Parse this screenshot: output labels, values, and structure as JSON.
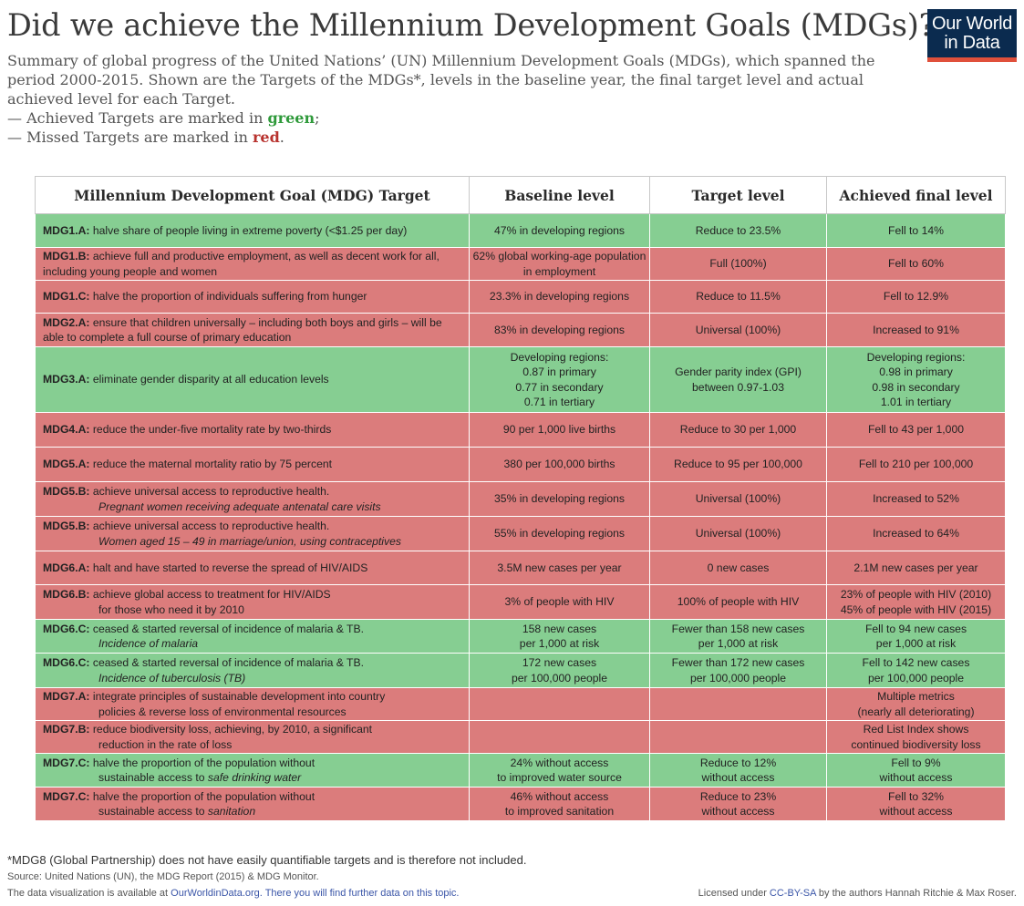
{
  "title": "Did we achieve the Millennium Development Goals (MDGs)?",
  "logo": {
    "line1": "Our World",
    "line2": "in Data"
  },
  "subtitle": "Summary of global progress of the United Nations’ (UN) Millennium Development Goals (MDGs), which spanned the period 2000-2015. Shown are the Targets of the MDGs*, levels in the baseline year, the final target level and actual achieved level for each Target.",
  "legend": {
    "achieved_prefix": "— Achieved Targets are marked in ",
    "achieved_word": "green",
    "achieved_suffix": ";",
    "missed_prefix": "— Missed Targets are marked in ",
    "missed_word": "red",
    "missed_suffix": "."
  },
  "colors": {
    "achieved": "#86ce92",
    "missed": "#db7c7c"
  },
  "chart_data": {
    "type": "table",
    "columns": [
      "Millennium Development Goal (MDG) Target",
      "Baseline level",
      "Target level",
      "Achieved final level"
    ],
    "rows": [
      {
        "status": "achieved",
        "code": "MDG1.A:",
        "target": " halve share of people living in extreme poverty (<$1.25 per day)",
        "target_note": "",
        "baseline": "47% in developing regions",
        "target_level": "Reduce to 23.5%",
        "achieved": "Fell to 14%"
      },
      {
        "status": "missed",
        "code": "MDG1.B:",
        "target": " achieve full and productive employment, as well as decent work for all, including young people and women",
        "target_note": "",
        "baseline": "62% global working-age population in employment",
        "target_level": "Full (100%)",
        "achieved": "Fell to 60%"
      },
      {
        "status": "missed",
        "code": "MDG1.C:",
        "target": " halve the proportion of individuals suffering from hunger",
        "target_note": "",
        "baseline": "23.3% in developing regions",
        "target_level": "Reduce to 11.5%",
        "achieved": "Fell to 12.9%"
      },
      {
        "status": "missed",
        "code": "MDG2.A:",
        "target": " ensure that children universally – including both boys and girls – will be able to complete a full course of primary education",
        "target_note": "",
        "baseline": "83% in developing regions",
        "target_level": "Universal (100%)",
        "achieved": "Increased to 91%"
      },
      {
        "status": "achieved",
        "code": "MDG3.A:",
        "target": " eliminate gender disparity at all education levels",
        "target_note": "",
        "baseline": "Developing regions:\n0.87 in primary\n0.77 in secondary\n0.71 in tertiary",
        "target_level": "Gender parity index (GPI)\nbetween 0.97-1.03",
        "achieved": "Developing regions:\n0.98 in primary\n0.98 in secondary\n1.01 in tertiary"
      },
      {
        "status": "missed",
        "code": "MDG4.A:",
        "target": " reduce the under-five mortality rate by two-thirds",
        "target_note": "",
        "baseline": "90 per 1,000 live births",
        "target_level": "Reduce to 30 per 1,000",
        "achieved": "Fell to 43 per 1,000"
      },
      {
        "status": "missed",
        "code": "MDG5.A:",
        "target": " reduce the maternal mortality ratio by 75 percent",
        "target_note": "",
        "baseline": "380 per 100,000 births",
        "target_level": "Reduce to 95 per 100,000",
        "achieved": "Fell to 210 per 100,000"
      },
      {
        "status": "missed",
        "code": "MDG5.B:",
        "target": " achieve universal access to reproductive health.",
        "target_note": "Pregnant women receiving adequate antenatal care visits",
        "baseline": "35% in developing regions",
        "target_level": "Universal (100%)",
        "achieved": "Increased to 52%"
      },
      {
        "status": "missed",
        "code": "MDG5.B:",
        "target": " achieve universal access to reproductive health.",
        "target_note": "Women aged 15 – 49 in marriage/union, using contraceptives",
        "baseline": "55% in developing regions",
        "target_level": "Universal (100%)",
        "achieved": "Increased to 64%"
      },
      {
        "status": "missed",
        "code": "MDG6.A:",
        "target": " halt and have started to reverse the spread of HIV/AIDS",
        "target_note": "",
        "baseline": "3.5M new cases per year",
        "target_level": "0 new cases",
        "achieved": "2.1M new cases per year"
      },
      {
        "status": "missed",
        "code": "MDG6.B:",
        "target": " achieve global access to treatment for HIV/AIDS\nfor those who need it by 2010",
        "target_note": "",
        "baseline": "3% of people with HIV",
        "target_level": "100% of people with HIV",
        "achieved": "23% of people with HIV (2010)\n45% of people with HIV (2015)"
      },
      {
        "status": "achieved",
        "code": "MDG6.C:",
        "target": " ceased & started reversal of incidence of malaria & TB.",
        "target_note": "Incidence of malaria",
        "baseline": "158 new cases\nper 1,000 at risk",
        "target_level": "Fewer than 158 new cases\nper 1,000 at risk",
        "achieved": "Fell to 94 new cases\nper 1,000 at risk"
      },
      {
        "status": "achieved",
        "code": "MDG6.C:",
        "target": " ceased & started reversal of incidence of malaria & TB.",
        "target_note": "Incidence of tuberculosis (TB)",
        "baseline": "172 new cases\nper 100,000 people",
        "target_level": "Fewer than 172 new cases\nper 100,000 people",
        "achieved": "Fell to 142 new cases\nper 100,000 people"
      },
      {
        "status": "missed",
        "code": "MDG7.A:",
        "target": " integrate principles of sustainable development into country\npolicies & reverse loss of environmental resources",
        "target_note": "",
        "baseline": "",
        "target_level": "",
        "achieved": "Multiple metrics\n(nearly all deteriorating)"
      },
      {
        "status": "missed",
        "code": "MDG7.B:",
        "target": " reduce biodiversity loss, achieving, by 2010, a significant\nreduction in the rate of loss",
        "target_note": "",
        "baseline": "",
        "target_level": "",
        "achieved": "Red List Index shows\ncontinued biodiversity loss"
      },
      {
        "status": "achieved",
        "code": "MDG7.C:",
        "target": " halve the proportion of the population without\nsustainable access to ",
        "target_note": "safe drinking water",
        "baseline": "24% without access\nto improved water source",
        "target_level": "Reduce to 12%\nwithout access",
        "achieved": "Fell to 9%\nwithout access"
      },
      {
        "status": "missed",
        "code": "MDG7.C:",
        "target": " halve the proportion of the population without\nsustainable access to ",
        "target_note": "sanitation",
        "baseline": "46% without access\nto improved sanitation",
        "target_level": "Reduce to 23%\nwithout access",
        "achieved": "Fell to 32%\nwithout access"
      }
    ]
  },
  "footer": {
    "note": "*MDG8 (Global Partnership) does not have easily quantifiable targets and is therefore not included.",
    "source": "Source: United Nations (UN), the MDG Report (2015) & MDG Monitor.",
    "viz_prefix": "The data visualization is available at ",
    "viz_link": "OurWorldinData.org",
    "viz_suffix": ". There you will find further data on this topic.",
    "license_prefix": "Licensed under ",
    "license_link": "CC-BY-SA",
    "license_suffix": " by the authors Hannah Ritchie & Max Roser."
  }
}
